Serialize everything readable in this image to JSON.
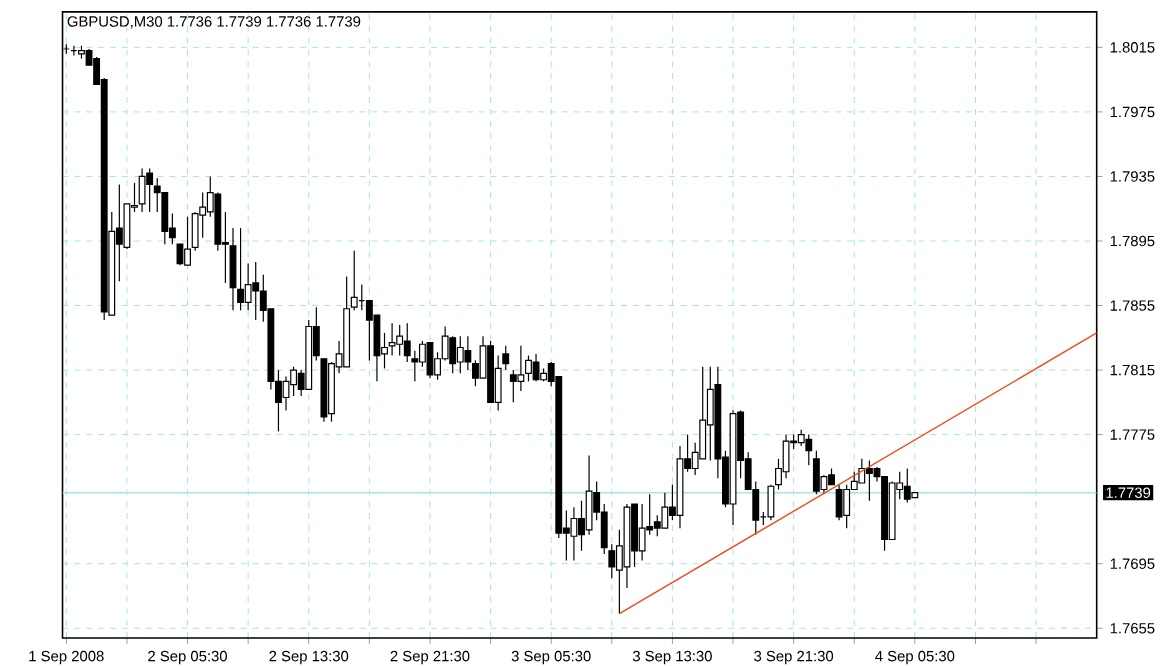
{
  "chart_data": {
    "type": "candlestick",
    "title": "GBPUSD,M30  1.7736 1.7739 1.7736 1.7739",
    "color": "#000000",
    "grid": true,
    "x": [
      "2008-09-01T21:30",
      "2008-09-01T22:00",
      "2008-09-01T22:30",
      "2008-09-01T23:00",
      "2008-09-01T23:30",
      "2008-09-02T00:00",
      "2008-09-02T00:30",
      "2008-09-02T01:00",
      "2008-09-02T01:30",
      "2008-09-02T02:00",
      "2008-09-02T02:30",
      "2008-09-02T03:00",
      "2008-09-02T03:30",
      "2008-09-02T04:00",
      "2008-09-02T04:30",
      "2008-09-02T05:00",
      "2008-09-02T05:30",
      "2008-09-02T06:00",
      "2008-09-02T06:30",
      "2008-09-02T07:00",
      "2008-09-02T07:30",
      "2008-09-02T08:00",
      "2008-09-02T08:30",
      "2008-09-02T09:00",
      "2008-09-02T09:30",
      "2008-09-02T10:00",
      "2008-09-02T10:30",
      "2008-09-02T11:00",
      "2008-09-02T11:30",
      "2008-09-02T12:00",
      "2008-09-02T12:30",
      "2008-09-02T13:00",
      "2008-09-02T13:30",
      "2008-09-02T14:00",
      "2008-09-02T14:30",
      "2008-09-02T15:00",
      "2008-09-02T15:30",
      "2008-09-02T16:00",
      "2008-09-02T16:30",
      "2008-09-02T17:00",
      "2008-09-02T17:30",
      "2008-09-02T18:00",
      "2008-09-02T18:30",
      "2008-09-02T19:00",
      "2008-09-02T19:30",
      "2008-09-02T20:00",
      "2008-09-02T20:30",
      "2008-09-02T21:00",
      "2008-09-02T21:30",
      "2008-09-02T22:00",
      "2008-09-02T22:30",
      "2008-09-02T23:00",
      "2008-09-02T23:30",
      "2008-09-03T00:00",
      "2008-09-03T00:30",
      "2008-09-03T01:00",
      "2008-09-03T01:30",
      "2008-09-03T02:00",
      "2008-09-03T02:30",
      "2008-09-03T03:00",
      "2008-09-03T03:30",
      "2008-09-03T04:00",
      "2008-09-03T04:30",
      "2008-09-03T05:00",
      "2008-09-03T05:30",
      "2008-09-03T06:00",
      "2008-09-03T06:30",
      "2008-09-03T07:00",
      "2008-09-03T07:30",
      "2008-09-03T08:00",
      "2008-09-03T08:30",
      "2008-09-03T09:00",
      "2008-09-03T09:30",
      "2008-09-03T10:00",
      "2008-09-03T10:30",
      "2008-09-03T11:00",
      "2008-09-03T11:30",
      "2008-09-03T12:00",
      "2008-09-03T12:30",
      "2008-09-03T13:00",
      "2008-09-03T13:30",
      "2008-09-03T14:00",
      "2008-09-03T14:30",
      "2008-09-03T15:00",
      "2008-09-03T15:30",
      "2008-09-03T16:00",
      "2008-09-03T16:30",
      "2008-09-03T17:00",
      "2008-09-03T17:30",
      "2008-09-03T18:00",
      "2008-09-03T18:30",
      "2008-09-03T19:00",
      "2008-09-03T19:30",
      "2008-09-03T20:00",
      "2008-09-03T20:30",
      "2008-09-03T21:00",
      "2008-09-03T21:30",
      "2008-09-03T22:00",
      "2008-09-03T22:30",
      "2008-09-03T23:00",
      "2008-09-03T23:30",
      "2008-09-04T00:00",
      "2008-09-04T00:30",
      "2008-09-04T01:00",
      "2008-09-04T01:30",
      "2008-09-04T02:00",
      "2008-09-04T02:30",
      "2008-09-04T03:00",
      "2008-09-04T03:30",
      "2008-09-04T04:00",
      "2008-09-04T04:30",
      "2008-09-04T05:00",
      "2008-09-04T05:30"
    ],
    "ohlc": [
      [
        1.8014,
        1.8017,
        1.8011,
        1.8014
      ],
      [
        1.8013,
        1.8016,
        1.801,
        1.8013
      ],
      [
        1.8011,
        1.8016,
        1.8008,
        1.8013
      ],
      [
        1.8013,
        1.8014,
        1.8004,
        1.8004
      ],
      [
        1.8008,
        1.8009,
        1.7992,
        1.7992
      ],
      [
        1.7995,
        1.7996,
        1.7846,
        1.7851
      ],
      [
        1.7849,
        1.7913,
        1.7849,
        1.7901
      ],
      [
        1.7903,
        1.793,
        1.787,
        1.7893
      ],
      [
        1.7891,
        1.7918,
        1.789,
        1.7918
      ],
      [
        1.7916,
        1.7931,
        1.7913,
        1.7917
      ],
      [
        1.7918,
        1.794,
        1.7913,
        1.7935
      ],
      [
        1.7937,
        1.794,
        1.7913,
        1.793
      ],
      [
        1.7929,
        1.7934,
        1.7913,
        1.7925
      ],
      [
        1.7925,
        1.7925,
        1.7893,
        1.7901
      ],
      [
        1.7903,
        1.7912,
        1.7893,
        1.7897
      ],
      [
        1.7893,
        1.7893,
        1.788,
        1.7881
      ],
      [
        1.788,
        1.791,
        1.788,
        1.789
      ],
      [
        1.7891,
        1.7913,
        1.7889,
        1.7912
      ],
      [
        1.7911,
        1.7925,
        1.7897,
        1.7916
      ],
      [
        1.7913,
        1.7935,
        1.791,
        1.7925
      ],
      [
        1.7924,
        1.7925,
        1.7889,
        1.7893
      ],
      [
        1.7894,
        1.7913,
        1.7869,
        1.7893
      ],
      [
        1.7892,
        1.7903,
        1.7852,
        1.7866
      ],
      [
        1.7865,
        1.7903,
        1.7852,
        1.7857
      ],
      [
        1.7857,
        1.7881,
        1.7852,
        1.7868
      ],
      [
        1.7869,
        1.7882,
        1.7846,
        1.7864
      ],
      [
        1.7864,
        1.7874,
        1.7845,
        1.7852
      ],
      [
        1.7853,
        1.7853,
        1.7803,
        1.7808
      ],
      [
        1.7808,
        1.7815,
        1.7777,
        1.7795
      ],
      [
        1.7798,
        1.7811,
        1.779,
        1.7808
      ],
      [
        1.7806,
        1.7817,
        1.7799,
        1.7815
      ],
      [
        1.7813,
        1.7815,
        1.7799,
        1.7803
      ],
      [
        1.7803,
        1.7846,
        1.7803,
        1.7842
      ],
      [
        1.7842,
        1.7854,
        1.7821,
        1.7824
      ],
      [
        1.7822,
        1.7822,
        1.7783,
        1.7786
      ],
      [
        1.7788,
        1.782,
        1.7783,
        1.7819
      ],
      [
        1.7817,
        1.7833,
        1.7813,
        1.7825
      ],
      [
        1.7817,
        1.7873,
        1.7817,
        1.7853
      ],
      [
        1.7854,
        1.7889,
        1.7852,
        1.786
      ],
      [
        1.7858,
        1.7868,
        1.7852,
        1.7858
      ],
      [
        1.7858,
        1.7858,
        1.7821,
        1.7846
      ],
      [
        1.7849,
        1.7849,
        1.7808,
        1.7824
      ],
      [
        1.7825,
        1.7838,
        1.7816,
        1.7829
      ],
      [
        1.783,
        1.7844,
        1.7824,
        1.7832
      ],
      [
        1.7831,
        1.7843,
        1.7824,
        1.7836
      ],
      [
        1.7833,
        1.7844,
        1.782,
        1.7824
      ],
      [
        1.7822,
        1.7827,
        1.7808,
        1.782
      ],
      [
        1.782,
        1.7833,
        1.7817,
        1.7831
      ],
      [
        1.7832,
        1.7832,
        1.781,
        1.7812
      ],
      [
        1.7812,
        1.7826,
        1.7809,
        1.7822
      ],
      [
        1.7822,
        1.7842,
        1.7821,
        1.7836
      ],
      [
        1.7835,
        1.7836,
        1.7813,
        1.7819
      ],
      [
        1.782,
        1.7836,
        1.7813,
        1.7829
      ],
      [
        1.7827,
        1.7836,
        1.7815,
        1.782
      ],
      [
        1.7819,
        1.7821,
        1.7805,
        1.781
      ],
      [
        1.781,
        1.7836,
        1.781,
        1.783
      ],
      [
        1.783,
        1.7833,
        1.7795,
        1.7795
      ],
      [
        1.7795,
        1.7824,
        1.779,
        1.7816
      ],
      [
        1.7825,
        1.783,
        1.7815,
        1.7819
      ],
      [
        1.7812,
        1.7815,
        1.7795,
        1.7808
      ],
      [
        1.7808,
        1.783,
        1.7802,
        1.7812
      ],
      [
        1.7813,
        1.7824,
        1.7808,
        1.7821
      ],
      [
        1.782,
        1.7825,
        1.7808,
        1.7809
      ],
      [
        1.7809,
        1.7816,
        1.7808,
        1.7813
      ],
      [
        1.7819,
        1.782,
        1.7805,
        1.7808
      ],
      [
        1.7811,
        1.7811,
        1.7711,
        1.7714
      ],
      [
        1.7717,
        1.7728,
        1.7697,
        1.7714
      ],
      [
        1.7712,
        1.773,
        1.7697,
        1.7723
      ],
      [
        1.7723,
        1.7734,
        1.7703,
        1.7713
      ],
      [
        1.7716,
        1.7762,
        1.7713,
        1.774
      ],
      [
        1.7739,
        1.7746,
        1.7722,
        1.7727
      ],
      [
        1.7727,
        1.7732,
        1.7701,
        1.7705
      ],
      [
        1.7703,
        1.7707,
        1.7686,
        1.7693
      ],
      [
        1.7691,
        1.7716,
        1.7664,
        1.7706
      ],
      [
        1.7693,
        1.7732,
        1.768,
        1.773
      ],
      [
        1.7732,
        1.7732,
        1.7693,
        1.7703
      ],
      [
        1.7703,
        1.7732,
        1.7697,
        1.7717
      ],
      [
        1.7718,
        1.7738,
        1.7713,
        1.7716
      ],
      [
        1.7721,
        1.7725,
        1.7712,
        1.7717
      ],
      [
        1.7717,
        1.7739,
        1.7717,
        1.773
      ],
      [
        1.773,
        1.7744,
        1.7722,
        1.7725
      ],
      [
        1.7725,
        1.7768,
        1.7717,
        1.776
      ],
      [
        1.776,
        1.7775,
        1.7752,
        1.7754
      ],
      [
        1.7754,
        1.777,
        1.775,
        1.7764
      ],
      [
        1.776,
        1.7817,
        1.776,
        1.7784
      ],
      [
        1.7781,
        1.7817,
        1.7759,
        1.7803
      ],
      [
        1.7806,
        1.7817,
        1.7748,
        1.776
      ],
      [
        1.7761,
        1.7765,
        1.773,
        1.7732
      ],
      [
        1.7732,
        1.779,
        1.7719,
        1.7788
      ],
      [
        1.7789,
        1.779,
        1.7748,
        1.7759
      ],
      [
        1.776,
        1.7764,
        1.7741,
        1.7741
      ],
      [
        1.7741,
        1.7746,
        1.7713,
        1.7722
      ],
      [
        1.7724,
        1.7727,
        1.7719,
        1.7724
      ],
      [
        1.7724,
        1.7744,
        1.7722,
        1.7743
      ],
      [
        1.7744,
        1.776,
        1.7741,
        1.7754
      ],
      [
        1.7752,
        1.7775,
        1.7748,
        1.7771
      ],
      [
        1.7771,
        1.7775,
        1.7766,
        1.777
      ],
      [
        1.777,
        1.7778,
        1.7768,
        1.7775
      ],
      [
        1.7772,
        1.7775,
        1.7756,
        1.7765
      ],
      [
        1.776,
        1.7765,
        1.7738,
        1.774
      ],
      [
        1.7741,
        1.775,
        1.7738,
        1.7749
      ],
      [
        1.775,
        1.7754,
        1.7744,
        1.7744
      ],
      [
        1.7741,
        1.7744,
        1.7722,
        1.7724
      ],
      [
        1.7725,
        1.7744,
        1.7717,
        1.7741
      ],
      [
        1.7741,
        1.7752,
        1.7741,
        1.7746
      ],
      [
        1.7745,
        1.776,
        1.7745,
        1.7754
      ],
      [
        1.7754,
        1.7759,
        1.7734,
        1.7751
      ],
      [
        1.7754,
        1.7755,
        1.7746,
        1.7749
      ],
      [
        1.7749,
        1.7749,
        1.7703,
        1.771
      ],
      [
        1.771,
        1.7746,
        1.771,
        1.7745
      ],
      [
        1.7741,
        1.7752,
        1.7735,
        1.7745
      ],
      [
        1.7743,
        1.7754,
        1.7733,
        1.7735
      ],
      [
        1.7736,
        1.7739,
        1.7736,
        1.7739
      ]
    ],
    "series": [
      {
        "type": "line",
        "color": "#f04a1a",
        "x": [
          "2008-09-03T10:00",
          "2008-09-04T17:30"
        ],
        "values": [
          1.7664,
          1.7838
        ]
      }
    ],
    "xlim": [
      "2008-09-01T21:15",
      "2008-09-04T17:30"
    ],
    "xticks": [
      {
        "value": "2008-09-01T21:30",
        "label": "1 Sep 2008"
      },
      {
        "value": "2008-09-02T01:30",
        "label": null
      },
      {
        "value": "2008-09-02T05:30",
        "label": "2 Sep 05:30"
      },
      {
        "value": "2008-09-02T09:30",
        "label": null
      },
      {
        "value": "2008-09-02T13:30",
        "label": "2 Sep 13:30"
      },
      {
        "value": "2008-09-02T17:30",
        "label": null
      },
      {
        "value": "2008-09-02T21:30",
        "label": "2 Sep 21:30"
      },
      {
        "value": "2008-09-03T01:30",
        "label": null
      },
      {
        "value": "2008-09-03T05:30",
        "label": "3 Sep 05:30"
      },
      {
        "value": "2008-09-03T09:30",
        "label": null
      },
      {
        "value": "2008-09-03T13:30",
        "label": "3 Sep 13:30"
      },
      {
        "value": "2008-09-03T17:30",
        "label": null
      },
      {
        "value": "2008-09-03T21:30",
        "label": "3 Sep 21:30"
      },
      {
        "value": "2008-09-04T01:30",
        "label": null
      },
      {
        "value": "2008-09-04T05:30",
        "label": "4 Sep 05:30"
      },
      {
        "value": "2008-09-04T09:30",
        "label": null
      },
      {
        "value": "2008-09-04T13:30",
        "label": null
      }
    ],
    "ylim": [
      1.7649,
      1.8037
    ],
    "yticks": [
      {
        "value": 1.8015,
        "label": "1.8015"
      },
      {
        "value": 1.7975,
        "label": "1.7975"
      },
      {
        "value": 1.7935,
        "label": "1.7935"
      },
      {
        "value": 1.7895,
        "label": "1.7895"
      },
      {
        "value": 1.7855,
        "label": "1.7855"
      },
      {
        "value": 1.7815,
        "label": "1.7815"
      },
      {
        "value": 1.7775,
        "label": "1.7775"
      },
      {
        "value": 1.7695,
        "label": "1.7695"
      },
      {
        "value": 1.7655,
        "label": "1.7655"
      }
    ],
    "ref_lines": [
      {
        "axis": "y",
        "value": 1.7739,
        "label": "1.7739",
        "color": "#a8e4e4"
      }
    ]
  }
}
